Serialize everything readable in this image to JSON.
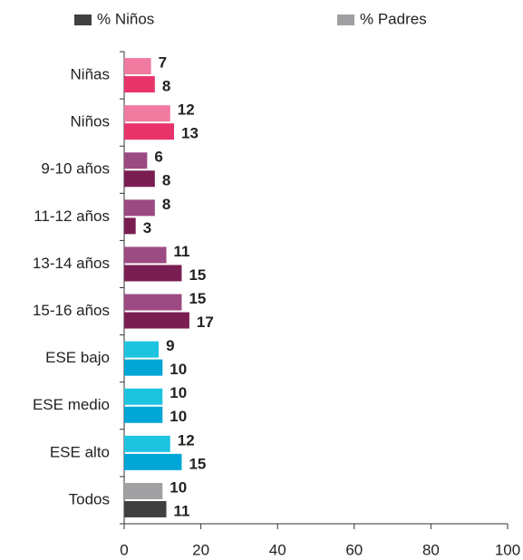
{
  "chart_data": {
    "type": "hbar_grouped",
    "categories": [
      "Niñas",
      "Niños",
      "9-10 años",
      "11-12 años",
      "13-14 años",
      "15-16 años",
      "ESE bajo",
      "ESE medio",
      "ESE alto",
      "Todos"
    ],
    "series": [
      {
        "name": "% Padres",
        "color": "#a0a0a2",
        "point_colors": [
          "#f07aa0",
          "#f07aa0",
          "#9c4a82",
          "#9c4a82",
          "#9c4a82",
          "#9c4a82",
          "#1ec3e0",
          "#1ec3e0",
          "#1ec3e0",
          "#a0a0a2"
        ],
        "values": [
          7,
          12,
          6,
          8,
          11,
          15,
          9,
          10,
          12,
          10
        ]
      },
      {
        "name": "% Niños",
        "color": "#404040",
        "point_colors": [
          "#e8336b",
          "#e8336b",
          "#7a1e52",
          "#7a1e52",
          "#7a1e52",
          "#7a1e52",
          "#00a6d6",
          "#00a6d6",
          "#00a6d6",
          "#404040"
        ],
        "values": [
          8,
          13,
          8,
          3,
          15,
          17,
          10,
          10,
          15,
          11
        ]
      }
    ],
    "legend_order": [
      1,
      0
    ],
    "xlim": [
      0,
      100
    ],
    "xticks": [
      0,
      20,
      40,
      60,
      80,
      100
    ]
  }
}
